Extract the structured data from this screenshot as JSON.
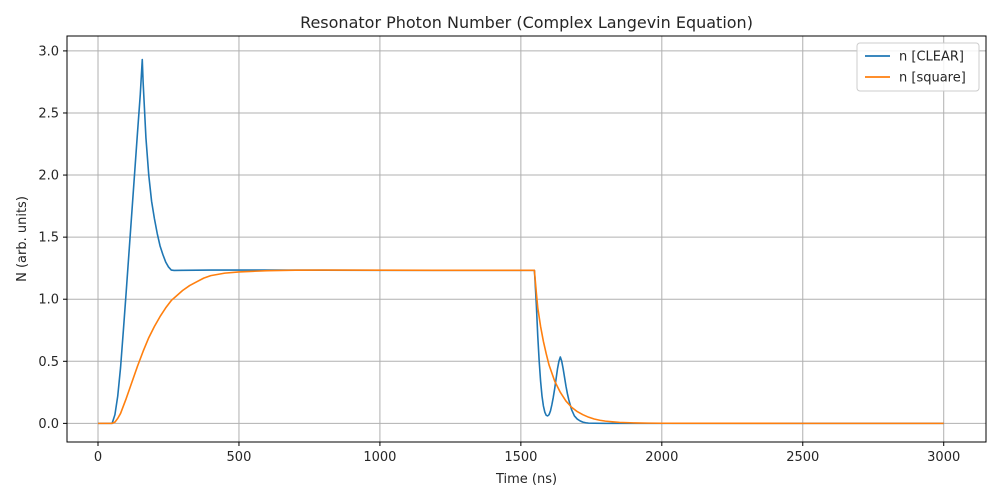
{
  "chart_data": {
    "type": "line",
    "title": "Resonator Photon Number (Complex Langevin Equation)",
    "xlabel": "Time (ns)",
    "ylabel": "N (arb. units)",
    "xlim": [
      -110,
      3150
    ],
    "ylim": [
      -0.15,
      3.12
    ],
    "xticks": [
      0,
      500,
      1000,
      1500,
      2000,
      2500,
      3000
    ],
    "yticks": [
      0.0,
      0.5,
      1.0,
      1.5,
      2.0,
      2.5,
      3.0
    ],
    "xtick_labels": [
      "0",
      "500",
      "1000",
      "1500",
      "2000",
      "2500",
      "3000"
    ],
    "ytick_labels": [
      "0.0",
      "0.5",
      "1.0",
      "1.5",
      "2.0",
      "2.5",
      "3.0"
    ],
    "grid": true,
    "legend_position": "top-right",
    "series": [
      {
        "name": "n [CLEAR]",
        "color": "#1f77b4",
        "x": [
          0,
          50,
          60,
          70,
          80,
          90,
          100,
          110,
          120,
          130,
          140,
          150,
          157,
          160,
          170,
          180,
          190,
          200,
          210,
          220,
          230,
          240,
          250,
          260,
          270,
          300,
          400,
          600,
          800,
          1000,
          1200,
          1400,
          1548,
          1550,
          1555,
          1560,
          1565,
          1570,
          1575,
          1580,
          1585,
          1590,
          1595,
          1600,
          1605,
          1610,
          1615,
          1620,
          1625,
          1630,
          1635,
          1640,
          1645,
          1650,
          1655,
          1660,
          1665,
          1670,
          1675,
          1680,
          1690,
          1700,
          1710,
          1720,
          1730,
          1740,
          1760,
          1800,
          1900,
          2000,
          2500,
          3000
        ],
        "y": [
          0,
          0,
          0.07,
          0.22,
          0.45,
          0.75,
          1.06,
          1.38,
          1.7,
          2.02,
          2.34,
          2.65,
          2.93,
          2.75,
          2.3,
          2.0,
          1.79,
          1.65,
          1.53,
          1.43,
          1.36,
          1.3,
          1.26,
          1.235,
          1.232,
          1.233,
          1.235,
          1.235,
          1.234,
          1.233,
          1.233,
          1.233,
          1.233,
          1.16,
          0.95,
          0.7,
          0.5,
          0.34,
          0.22,
          0.14,
          0.09,
          0.065,
          0.06,
          0.07,
          0.1,
          0.15,
          0.21,
          0.28,
          0.36,
          0.44,
          0.5,
          0.535,
          0.5,
          0.44,
          0.37,
          0.3,
          0.24,
          0.19,
          0.15,
          0.11,
          0.06,
          0.035,
          0.02,
          0.01,
          0.005,
          0.002,
          0.001,
          0,
          0,
          0,
          0,
          0
        ]
      },
      {
        "name": "n [square]",
        "color": "#ff7f0e",
        "x": [
          0,
          50,
          60,
          70,
          80,
          100,
          120,
          140,
          160,
          180,
          200,
          220,
          240,
          260,
          280,
          300,
          325,
          350,
          375,
          400,
          450,
          500,
          550,
          600,
          650,
          700,
          800,
          1000,
          1200,
          1400,
          1548,
          1555,
          1560,
          1570,
          1580,
          1590,
          1600,
          1620,
          1640,
          1660,
          1680,
          1700,
          1720,
          1740,
          1760,
          1780,
          1800,
          1850,
          1900,
          1950,
          2000,
          2500,
          3000
        ],
        "y": [
          0,
          0,
          0.01,
          0.04,
          0.08,
          0.2,
          0.33,
          0.46,
          0.58,
          0.69,
          0.78,
          0.86,
          0.93,
          0.99,
          1.03,
          1.07,
          1.11,
          1.14,
          1.17,
          1.19,
          1.21,
          1.22,
          1.225,
          1.23,
          1.232,
          1.234,
          1.235,
          1.234,
          1.233,
          1.233,
          1.233,
          1.05,
          0.93,
          0.78,
          0.66,
          0.56,
          0.47,
          0.34,
          0.25,
          0.18,
          0.13,
          0.095,
          0.07,
          0.05,
          0.035,
          0.025,
          0.018,
          0.008,
          0.004,
          0.002,
          0.001,
          0,
          0
        ]
      }
    ]
  }
}
